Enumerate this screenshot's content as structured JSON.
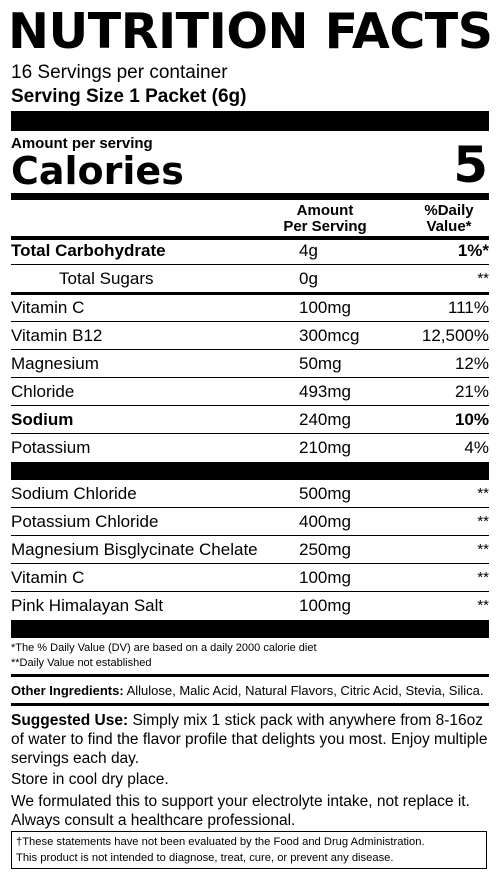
{
  "header": {
    "title": "NUTRITION FACTS",
    "servings_per_container": "16 Servings per container",
    "serving_size": "Serving Size 1 Packet (6g)"
  },
  "calories": {
    "amount_per_serving": "Amount per serving",
    "label": "Calories",
    "value": "5"
  },
  "columns": {
    "amount_line1": "Amount",
    "amount_line2": "Per Serving",
    "dv_line1": "%Daily",
    "dv_line2": "Value*"
  },
  "nutrients": [
    {
      "name": "Total Carbohydrate",
      "amount": "4g",
      "dv": "1%*"
    },
    {
      "name": "Total Sugars",
      "amount": "0g",
      "dv": "**"
    },
    {
      "name": "Vitamin C",
      "amount": "100mg",
      "dv": "111%"
    },
    {
      "name": "Vitamin B12",
      "amount": "300mcg",
      "dv": "12,500%"
    },
    {
      "name": "Magnesium",
      "amount": "50mg",
      "dv": "12%"
    },
    {
      "name": "Chloride",
      "amount": "493mg",
      "dv": "21%"
    },
    {
      "name": "Sodium",
      "amount": "240mg",
      "dv": "10%"
    },
    {
      "name": "Potassium",
      "amount": "210mg",
      "dv": "4%"
    }
  ],
  "blend": [
    {
      "name": "Sodium Chloride",
      "amount": "500mg",
      "dv": "**"
    },
    {
      "name": "Potassium Chloride",
      "amount": "400mg",
      "dv": "**"
    },
    {
      "name": "Magnesium Bisglycinate Chelate",
      "amount": "250mg",
      "dv": "**"
    },
    {
      "name": "Vitamin C",
      "amount": "100mg",
      "dv": "**"
    },
    {
      "name": "Pink Himalayan Salt",
      "amount": "100mg",
      "dv": "**"
    }
  ],
  "footnotes": {
    "dv_note": "*The % Daily Value (DV) are based on a daily 2000 calorie diet",
    "not_established": "**Daily Value not established"
  },
  "other_ingredients": {
    "label": "Other Ingredients:",
    "text": " Allulose, Malic Acid, Natural Flavors, Citric Acid, Stevia, Silica."
  },
  "suggested_use": {
    "label": "Suggested Use:",
    "text": " Simply mix 1 stick pack with anywhere from 8-16oz of water to find the flavor profile that delights you most. Enjoy multiple servings each day."
  },
  "storage": "Store in cool dry place.",
  "formulation": "We formulated this to support your electrolyte intake, not replace it. Always consult a healthcare professional.",
  "disclaimer": {
    "line1": "†These statements have not been evaluated by the Food and Drug Administration.",
    "line2": "This product is not intended to diagnose, treat, cure, or prevent any disease."
  }
}
